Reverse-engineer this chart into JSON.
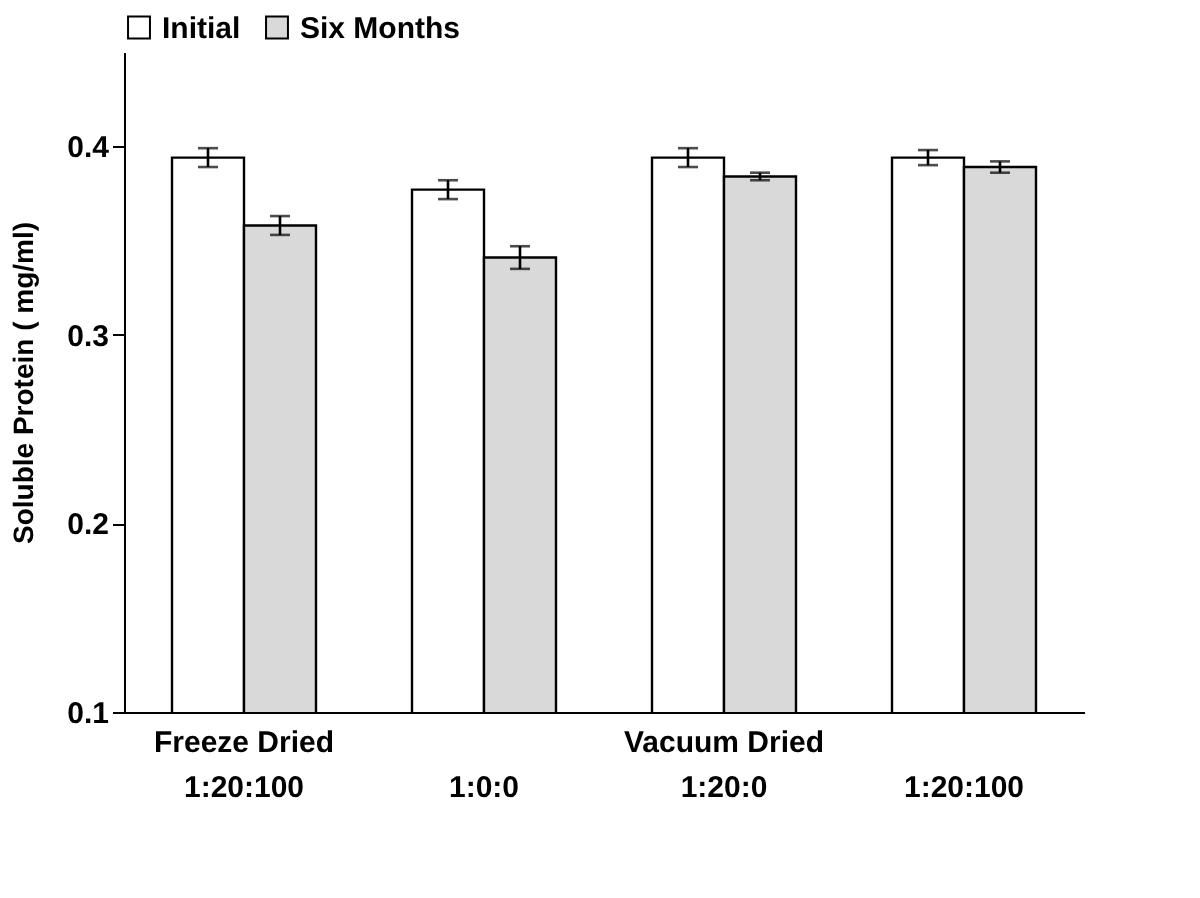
{
  "chart_data": {
    "type": "bar",
    "categories": [
      "1:20:100",
      "1:0:0",
      "1:20:0",
      "1:20:100"
    ],
    "series": [
      {
        "name": "Initial",
        "color": "#ffffff",
        "values": [
          0.394,
          0.377,
          0.394,
          0.394
        ],
        "errors": [
          0.005,
          0.005,
          0.005,
          0.004
        ]
      },
      {
        "name": "Six Months",
        "color": "#d9d9d9",
        "values": [
          0.358,
          0.341,
          0.384,
          0.389
        ],
        "errors": [
          0.005,
          0.006,
          0.002,
          0.003
        ]
      }
    ],
    "ylabel": "Soluble Protein ( mg/ml)",
    "ylim": [
      0.1,
      0.45
    ],
    "yticks": [
      0.1,
      0.2,
      0.3,
      0.4
    ],
    "annotations": [
      "Freeze Dried",
      "Vacuum Dried"
    ],
    "grid": false,
    "legend": "top"
  }
}
